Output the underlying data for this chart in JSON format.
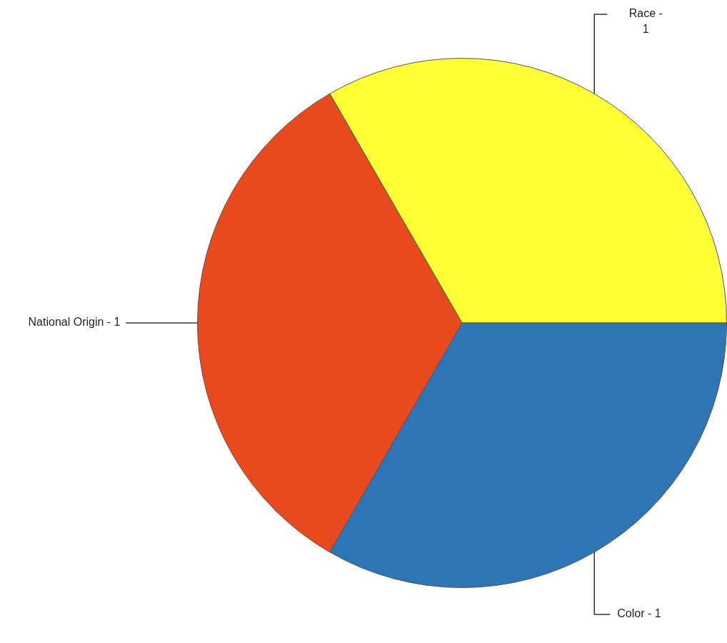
{
  "chart_data": {
    "type": "pie",
    "categories": [
      "Race -",
      "Color -",
      "National Origin -"
    ],
    "values": [
      1,
      1,
      1
    ],
    "colors": [
      "#ffff33",
      "#2e75b6",
      "#e8491d"
    ],
    "data_labels": true
  }
}
